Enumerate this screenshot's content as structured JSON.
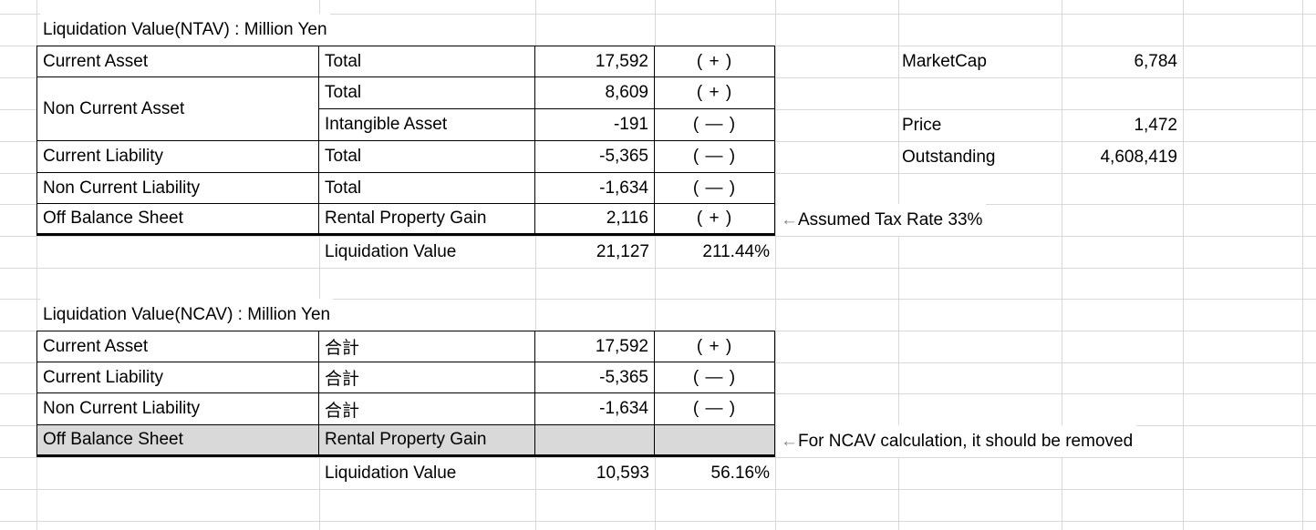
{
  "ntav": {
    "title": "Liquidation Value(NTAV) : Million Yen",
    "rows": [
      {
        "category": "Current Asset",
        "item": "Total",
        "value": "17,592",
        "sign": "( + )"
      },
      {
        "category": "Non Current Asset",
        "item": "Total",
        "value": "8,609",
        "sign": "( + )"
      },
      {
        "category": "",
        "item": "Intangible Asset",
        "value": "-191",
        "sign": "( — )"
      },
      {
        "category": "Current Liability",
        "item": "Total",
        "value": "-5,365",
        "sign": "( — )"
      },
      {
        "category": "Non Current Liability",
        "item": "Total",
        "value": "-1,634",
        "sign": "( — )"
      },
      {
        "category": "Off Balance Sheet",
        "item": "Rental Property Gain",
        "value": "2,116",
        "sign": "( + )"
      }
    ],
    "total": {
      "label": "Liquidation Value",
      "value": "21,127",
      "percent": "211.44%"
    },
    "annotation": {
      "arrow": "←",
      "text": "Assumed Tax Rate 33%"
    }
  },
  "ncav": {
    "title": "Liquidation Value(NCAV) : Million Yen",
    "rows": [
      {
        "category": "Current Asset",
        "item": "合計",
        "value": "17,592",
        "sign": "( + )"
      },
      {
        "category": "Current Liability",
        "item": "合計",
        "value": "-5,365",
        "sign": "( — )"
      },
      {
        "category": "Non Current Liability",
        "item": "合計",
        "value": "-1,634",
        "sign": "( — )"
      },
      {
        "category": "Off Balance Sheet",
        "item": "Rental Property Gain",
        "value": "",
        "sign": ""
      }
    ],
    "total": {
      "label": "Liquidation Value",
      "value": "10,593",
      "percent": "56.16%"
    },
    "annotation": {
      "arrow": "←",
      "text": "For NCAV calculation, it should be removed"
    }
  },
  "side_panel": {
    "marketcap_label": "MarketCap",
    "marketcap_value": "6,784",
    "price_label": "Price",
    "price_value": "1,472",
    "outstanding_label": "Outstanding",
    "outstanding_value": "4,608,419"
  },
  "colors": {
    "gridline": "#d9d9d9",
    "table_border": "#000000",
    "highlight_row": "#d9d9d9",
    "arrow": "#808080",
    "text": "#000000",
    "background": "#ffffff"
  }
}
